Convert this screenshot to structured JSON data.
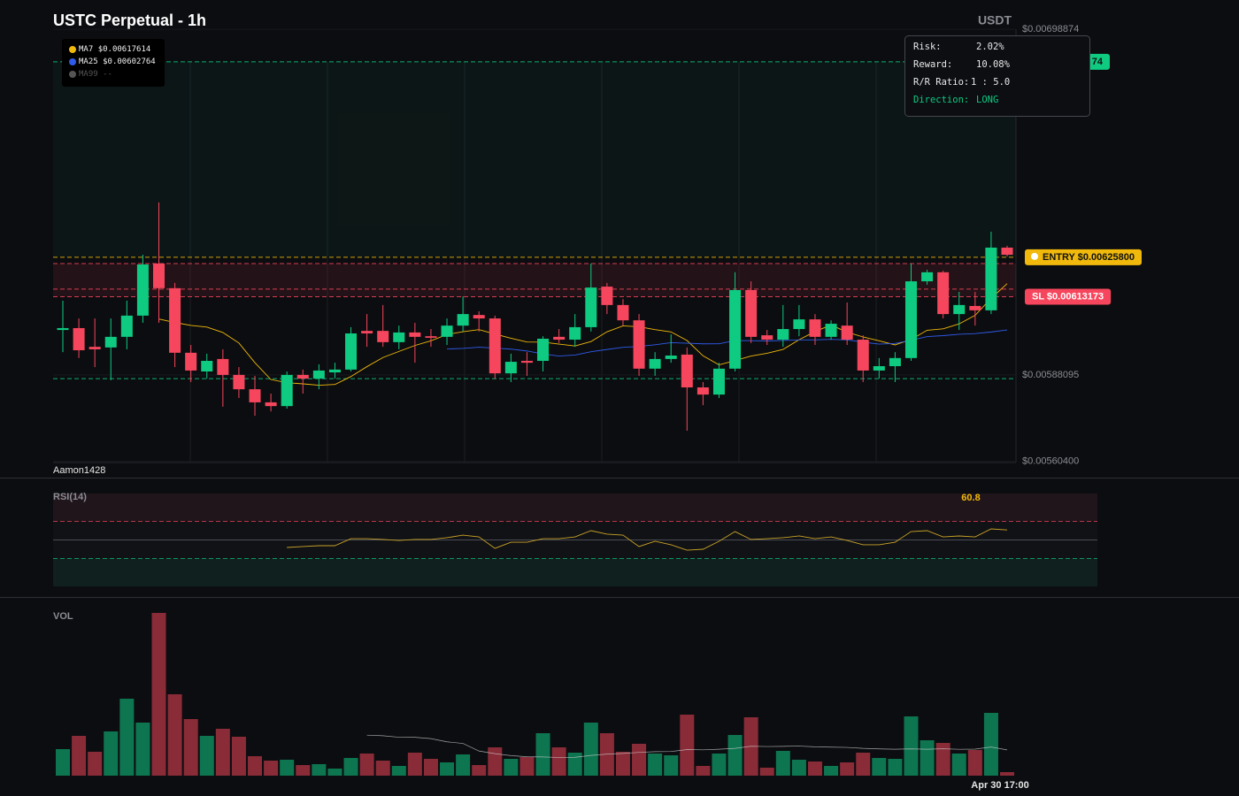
{
  "header": {
    "title": "USTC Perpetual - 1h",
    "quote": "USDT",
    "watermark": "Aamon1428"
  },
  "risk_box": {
    "rows": [
      {
        "label": "Risk:",
        "value": "2.02%"
      },
      {
        "label": "Reward:",
        "value": "10.08%"
      },
      {
        "label": "R/R Ratio:",
        "value": "1 : 5.0"
      },
      {
        "label": "Direction:",
        "value": "LONG"
      }
    ]
  },
  "chart_data": [
    {
      "type": "candlestick",
      "up_color": "#0ecb81",
      "down_color": "#f6465d",
      "ylim": [
        0.0056,
        0.0069892
      ],
      "yticks": [
        {
          "value": 0.00698874,
          "label": "$0.00698874"
        },
        {
          "value": 0.00588095,
          "label": "$0.00588095"
        },
        {
          "value": 0.005604,
          "label": "$0.00560400"
        }
      ],
      "ma": [
        {
          "name": "MA7",
          "value_label": "$0.00617614",
          "color": "#f0b90b"
        },
        {
          "name": "MA25",
          "value_label": "$0.00602764",
          "color": "#2f5bea"
        },
        {
          "name": "MA99",
          "value_label": "--",
          "color": "#555555"
        }
      ],
      "levels": [
        {
          "value": 0.00688474,
          "color": "#0ecb81",
          "label": "74"
        },
        {
          "value": 0.006258,
          "color": "#f0b90b",
          "label": "ENTRY $0.00625800"
        },
        {
          "value": 0.00613173,
          "color": "#f6465d",
          "label": "SL $0.00613173"
        },
        {
          "value": 0.006238,
          "color": "#f6465d"
        },
        {
          "value": 0.006156,
          "color": "#f6465d"
        },
        {
          "value": 0.005869,
          "color": "#0ecb81"
        }
      ],
      "open": [
        0.006025,
        0.006031,
        0.005971,
        0.005969,
        0.006003,
        0.006071,
        0.006238,
        0.006159,
        0.005952,
        0.005892,
        0.005932,
        0.005881,
        0.005835,
        0.005793,
        0.005781,
        0.005881,
        0.005869,
        0.005889,
        0.005898,
        0.006022,
        0.006022,
        0.005986,
        0.006017,
        0.006005,
        0.006003,
        0.006039,
        0.006073,
        0.006062,
        0.005886,
        0.005926,
        0.005926,
        0.006003,
        0.005994,
        0.006034,
        0.006164,
        0.006105,
        0.006056,
        0.005901,
        0.005932,
        0.005946,
        0.005841,
        0.005818,
        0.005901,
        0.006153,
        0.006008,
        0.005994,
        0.006028,
        0.006059,
        0.006003,
        0.006039,
        0.005994,
        0.005895,
        0.005909,
        0.005935,
        0.006181,
        0.00621,
        0.006076,
        0.006102,
        0.006088,
        0.006289
      ],
      "high": [
        0.006119,
        0.006062,
        0.006062,
        0.006062,
        0.006119,
        0.006266,
        0.006434,
        0.006176,
        0.005977,
        0.005949,
        0.005963,
        0.005906,
        0.005878,
        0.005821,
        0.005892,
        0.005898,
        0.005915,
        0.00592,
        0.006034,
        0.006076,
        0.006105,
        0.006039,
        0.006048,
        0.006028,
        0.006062,
        0.006133,
        0.006085,
        0.006071,
        0.005949,
        0.005954,
        0.006005,
        0.006028,
        0.006076,
        0.006238,
        0.006176,
        0.006124,
        0.006076,
        0.005954,
        0.006011,
        0.005969,
        0.005858,
        0.00592,
        0.00621,
        0.006181,
        0.006025,
        0.006105,
        0.006105,
        0.006076,
        0.006056,
        0.006113,
        0.006008,
        0.005935,
        0.005954,
        0.006238,
        0.006218,
        0.006215,
        0.006147,
        0.006147,
        0.00634,
        0.006295
      ],
      "low": [
        0.005954,
        0.005935,
        0.005906,
        0.005864,
        0.005963,
        0.006048,
        0.006048,
        0.005906,
        0.005858,
        0.005869,
        0.005779,
        0.005807,
        0.00575,
        0.005764,
        0.005773,
        0.005821,
        0.005835,
        0.005869,
        0.005892,
        0.005971,
        0.005971,
        0.005963,
        0.00592,
        0.005971,
        0.005977,
        0.00602,
        0.00602,
        0.005869,
        0.005858,
        0.005878,
        0.005892,
        0.005983,
        0.005971,
        0.00602,
        0.006076,
        0.006039,
        0.005878,
        0.005878,
        0.00592,
        0.005702,
        0.005784,
        0.005807,
        0.005892,
        0.005983,
        0.005977,
        0.005971,
        0.006005,
        0.005977,
        0.005994,
        0.005977,
        0.005858,
        0.005869,
        0.005858,
        0.005926,
        0.00617,
        0.006062,
        0.006025,
        0.006039,
        0.006076,
        0.006261
      ],
      "close": [
        0.006031,
        0.00596,
        0.005963,
        0.006003,
        0.006071,
        0.006235,
        0.006159,
        0.005952,
        0.005895,
        0.005926,
        0.005881,
        0.005835,
        0.005793,
        0.005781,
        0.005881,
        0.005869,
        0.005895,
        0.005898,
        0.006014,
        0.006014,
        0.005986,
        0.006017,
        0.006003,
        0.006,
        0.006039,
        0.006076,
        0.006062,
        0.005886,
        0.005923,
        0.00592,
        0.005997,
        0.005994,
        0.006034,
        0.006161,
        0.006105,
        0.006056,
        0.005901,
        0.005932,
        0.005943,
        0.005841,
        0.005818,
        0.005901,
        0.006153,
        0.006003,
        0.005994,
        0.006028,
        0.006059,
        0.006003,
        0.006045,
        0.005994,
        0.005895,
        0.005909,
        0.005935,
        0.006181,
        0.00621,
        0.006076,
        0.006105,
        0.006088,
        0.006289,
        0.006266
      ]
    },
    {
      "type": "line",
      "title": "RSI(14)",
      "color": "#c9a227",
      "value_color": "#f0b90b",
      "ylim": [
        0,
        100
      ],
      "levels": [
        {
          "value": 70,
          "color": "#f6465d"
        },
        {
          "value": 50,
          "color": "#4a4d55"
        },
        {
          "value": 30,
          "color": "#0ecb81"
        }
      ],
      "values": [
        null,
        null,
        null,
        null,
        null,
        null,
        null,
        null,
        null,
        null,
        null,
        null,
        null,
        null,
        41.9,
        42.9,
        43.8,
        43.8,
        51.4,
        51.4,
        50.5,
        49.5,
        50.5,
        50.5,
        52.4,
        55.2,
        53.3,
        41,
        47.6,
        47.6,
        51.4,
        51.4,
        53.3,
        60,
        56.2,
        55.2,
        42.9,
        48.6,
        44.8,
        39,
        40,
        48.6,
        59,
        50.5,
        51.4,
        52.4,
        54.3,
        51.4,
        53.3,
        49.5,
        44.8,
        44.8,
        47.6,
        59,
        60,
        53.3,
        54.3,
        53.3,
        61.9,
        60.8
      ]
    },
    {
      "type": "bar",
      "title": "VOL",
      "up_color": "#0e8a5c",
      "down_color": "#a1313f",
      "ylim": [
        0,
        200
      ],
      "categories": [
        null,
        null,
        null,
        null,
        null,
        null,
        null,
        null,
        null,
        null,
        null,
        null,
        null,
        null,
        null,
        null,
        null,
        null,
        null,
        null,
        null,
        null,
        null,
        null,
        null,
        null,
        null,
        null,
        null,
        null,
        null,
        null,
        null,
        null,
        null,
        null,
        null,
        null,
        null,
        null,
        null,
        null,
        null,
        null,
        null,
        null,
        null,
        null,
        null,
        null,
        null,
        null,
        null,
        null,
        null,
        null,
        null,
        null,
        null,
        "Apr 30 17:00"
      ],
      "values": [
        30,
        45,
        27,
        50,
        87,
        60,
        184,
        92,
        64,
        45,
        53,
        44,
        22,
        17,
        18,
        12,
        13,
        8,
        20,
        25,
        17,
        11,
        26,
        19,
        15,
        24,
        12,
        32,
        19,
        21,
        48,
        32,
        26,
        60,
        48,
        27,
        36,
        25,
        23,
        69,
        11,
        25,
        46,
        66,
        9,
        28,
        18,
        16,
        11,
        15,
        26,
        20,
        19,
        67,
        40,
        37,
        25,
        29,
        71,
        4
      ]
    }
  ]
}
